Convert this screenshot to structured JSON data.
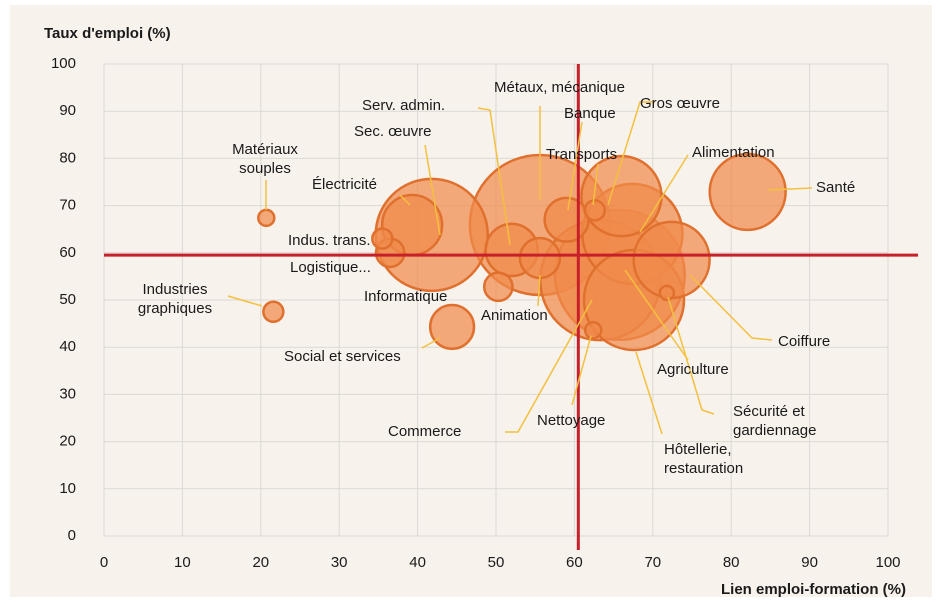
{
  "chart_data": {
    "type": "bubble",
    "y_label": "Taux d'emploi (%)",
    "x_label": "Lien emploi-formation (%)",
    "categories": [
      "Métaux, mécanique",
      "Agriculture",
      "Commerce",
      "Sec. œuvre",
      "Alimentation",
      "Hôtellerie, restauration",
      "Gros œuvre",
      "Coiffure",
      "Santé",
      "Électricité",
      "Serv. admin.",
      "Social et services",
      "Banque",
      "Animation",
      "Logistique...",
      "Informatique",
      "Indus. trans.",
      "Transports",
      "Industries graphiques",
      "Matériaux souples",
      "Nettoyage",
      "Sécurité et gardiennage"
    ],
    "x": [
      55.6,
      65.8,
      63.3,
      41.8,
      67.4,
      67.6,
      66.0,
      72.4,
      82.1,
      39.3,
      52.0,
      44.4,
      59.0,
      55.6,
      36.5,
      50.3,
      35.5,
      62.6,
      21.6,
      20.7,
      62.4,
      71.8
    ],
    "values": [
      65.9,
      55.3,
      54.2,
      63.8,
      64.0,
      50.0,
      72.0,
      58.5,
      72.9,
      65.9,
      60.6,
      44.3,
      67.0,
      58.9,
      60.0,
      52.8,
      63.0,
      69.0,
      47.5,
      67.4,
      43.6,
      51.5
    ],
    "sizes": [
      49,
      42,
      36,
      31.4,
      25,
      25,
      16,
      14.4,
      14.4,
      9,
      6.8,
      4.8,
      4.8,
      4,
      2,
      2,
      1,
      1,
      1,
      0.64,
      0.64,
      0.5
    ],
    "color": "#f08a4b",
    "edge_color": "#e0702e",
    "reference_lines": {
      "x": 60.5,
      "y": 59.5,
      "color": "#c8202a"
    },
    "xlim": [
      0,
      100
    ],
    "ylim": [
      0,
      100
    ],
    "xticks": [
      0,
      10,
      20,
      30,
      40,
      50,
      60,
      70,
      80,
      90,
      100
    ],
    "yticks": [
      0,
      10,
      20,
      30,
      40,
      50,
      60,
      70,
      80,
      90,
      100
    ],
    "grid": true
  }
}
